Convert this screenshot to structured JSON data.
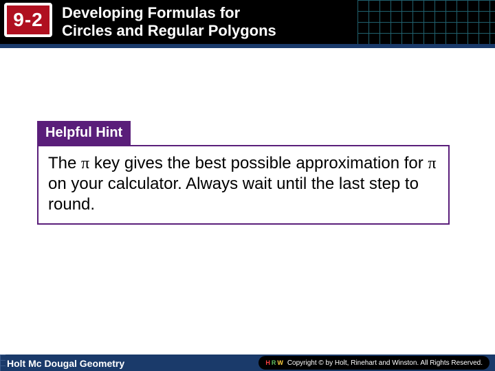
{
  "header": {
    "section_number": "9-2",
    "title_line1": "Developing Formulas for",
    "title_line2": "Circles and Regular Polygons",
    "badge_bg": "#b01020",
    "badge_border": "#ffffff",
    "header_bg": "#000000",
    "grid_color": "#2a7a8a"
  },
  "hint": {
    "tab_label": "Helpful Hint",
    "tab_bg": "#5a1e7a",
    "tab_fg": "#ffffff",
    "body_border": "#5a1e7a",
    "body_fontsize": 24,
    "text_before_pi1": "The ",
    "pi1": "π",
    "text_mid1": "  key gives the best possible approximation for ",
    "pi2": "π",
    "text_after": " on your calculator. Always wait until the last step to round."
  },
  "footer": {
    "left_text": "Holt Mc Dougal Geometry",
    "bg": "#1a3a6a",
    "copyright_text": "Copyright © by Holt, Rinehart and Winston. All Rights Reserved."
  }
}
